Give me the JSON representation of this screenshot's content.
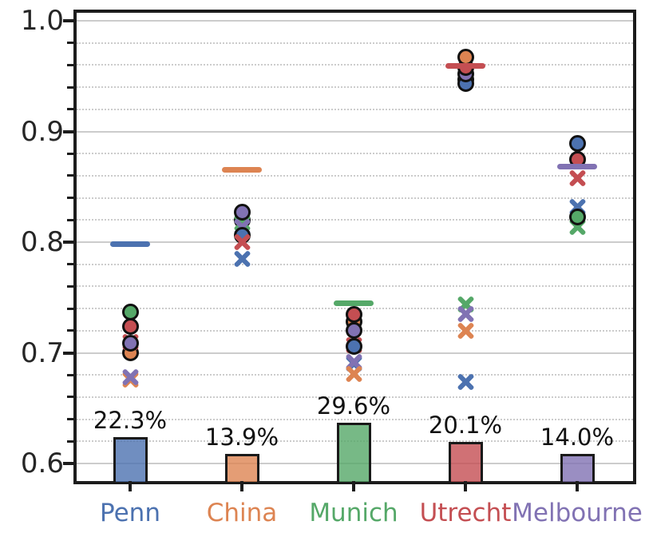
{
  "chart_data": {
    "type": "scatter",
    "title": "",
    "xlabel": "",
    "ylabel": "",
    "categories": [
      "Penn",
      "China",
      "Munich",
      "Utrecht",
      "Melbourne"
    ],
    "category_color_names": [
      "blue",
      "orange",
      "green",
      "red",
      "purple"
    ],
    "palette": {
      "blue": "#4C72B0",
      "orange": "#DD8452",
      "green": "#55A868",
      "red": "#C44E52",
      "purple": "#8172B3"
    },
    "axis_color": "#1c1c1c",
    "grid_color": "#cccccc",
    "tick_label_color": "#262626",
    "ytick_labels": [
      "1.0",
      "0.9",
      "0.8",
      "0.7",
      "0.6"
    ],
    "ytick_values": [
      1.0,
      0.9,
      0.8,
      0.7,
      0.6
    ],
    "minor_tick_step": 0.02,
    "ylim": [
      0.581,
      1.01
    ],
    "grid": "major solid, minor dotted",
    "legend": "none",
    "means": [
      0.798,
      0.865,
      0.745,
      0.959,
      0.868
    ],
    "bars": {
      "percent_values": [
        22.3,
        13.9,
        29.6,
        20.1,
        14.0
      ],
      "percent_labels": [
        "22.3%",
        "13.9%",
        "29.6%",
        "20.1%",
        "14.0%"
      ],
      "fill_alpha": 0.8
    },
    "points": [
      {
        "category": "Penn",
        "markers": [
          {
            "marker": "circle",
            "color": "orange",
            "value": 0.7
          },
          {
            "marker": "x",
            "color": "red",
            "value": 0.71
          },
          {
            "marker": "circle",
            "color": "purple",
            "value": 0.709
          },
          {
            "marker": "circle",
            "color": "red",
            "value": 0.724
          },
          {
            "marker": "circle",
            "color": "green",
            "value": 0.737
          },
          {
            "marker": "x",
            "color": "orange",
            "value": 0.676
          },
          {
            "marker": "x",
            "color": "purple",
            "value": 0.678
          }
        ]
      },
      {
        "category": "China",
        "markers": [
          {
            "marker": "circle",
            "color": "red",
            "value": 0.82
          },
          {
            "marker": "x",
            "color": "green",
            "value": 0.817
          },
          {
            "marker": "x",
            "color": "purple",
            "value": 0.814
          },
          {
            "marker": "circle",
            "color": "blue",
            "value": 0.806
          },
          {
            "marker": "x",
            "color": "red",
            "value": 0.8
          },
          {
            "marker": "circle",
            "color": "purple",
            "value": 0.827
          },
          {
            "marker": "x",
            "color": "blue",
            "value": 0.785
          }
        ]
      },
      {
        "category": "Munich",
        "markers": [
          {
            "marker": "circle",
            "color": "orange",
            "value": 0.728
          },
          {
            "marker": "circle",
            "color": "purple",
            "value": 0.72
          },
          {
            "marker": "circle",
            "color": "red",
            "value": 0.735
          },
          {
            "marker": "x",
            "color": "red",
            "value": 0.707
          },
          {
            "marker": "circle",
            "color": "blue",
            "value": 0.706
          },
          {
            "marker": "x",
            "color": "blue",
            "value": 0.69
          },
          {
            "marker": "x",
            "color": "purple",
            "value": 0.692
          },
          {
            "marker": "x",
            "color": "orange",
            "value": 0.681
          }
        ]
      },
      {
        "category": "Utrecht",
        "markers": [
          {
            "marker": "circle",
            "color": "green",
            "value": 0.947
          },
          {
            "marker": "circle",
            "color": "blue",
            "value": 0.943
          },
          {
            "marker": "circle",
            "color": "purple",
            "value": 0.952
          },
          {
            "marker": "circle",
            "color": "red",
            "value": 0.958
          },
          {
            "marker": "circle",
            "color": "orange",
            "value": 0.967
          },
          {
            "marker": "x",
            "color": "green",
            "value": 0.744
          },
          {
            "marker": "x",
            "color": "purple",
            "value": 0.735
          },
          {
            "marker": "x",
            "color": "orange",
            "value": 0.72
          },
          {
            "marker": "x",
            "color": "blue",
            "value": 0.674
          }
        ]
      },
      {
        "category": "Melbourne",
        "markers": [
          {
            "marker": "circle",
            "color": "blue",
            "value": 0.889
          },
          {
            "marker": "x",
            "color": "red",
            "value": 0.858
          },
          {
            "marker": "circle",
            "color": "red",
            "value": 0.875
          },
          {
            "marker": "x",
            "color": "blue",
            "value": 0.832
          },
          {
            "marker": "x",
            "color": "green",
            "value": 0.814
          },
          {
            "marker": "circle",
            "color": "green",
            "value": 0.823
          }
        ]
      }
    ]
  }
}
